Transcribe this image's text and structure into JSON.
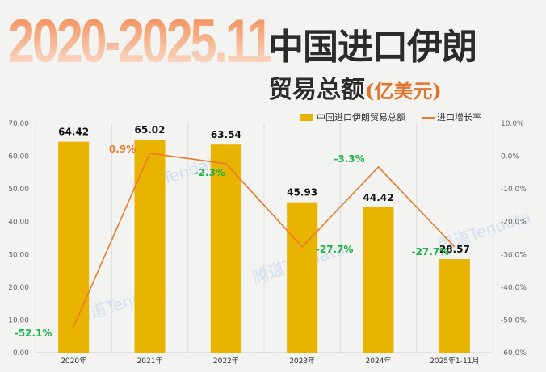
{
  "header": {
    "year_range": "2020-2025.11",
    "title_line1": "中国进口伊朗",
    "title_line2": "贸易总额",
    "unit": "(亿美元)"
  },
  "watermark": "腾道Tendata",
  "chart_data": {
    "type": "bar+line",
    "categories": [
      "2020年",
      "2021年",
      "2022年",
      "2023年",
      "2024年",
      "2025年1-11月"
    ],
    "series": [
      {
        "name": "中国进口伊朗贸易总额",
        "type": "bar",
        "axis": "left",
        "values": [
          64.42,
          65.02,
          63.54,
          45.93,
          44.42,
          28.57
        ],
        "labels": [
          "64.42",
          "65.02",
          "63.54",
          "45.93",
          "44.42",
          "28.57"
        ],
        "color": "#e8b400"
      },
      {
        "name": "进口增长率",
        "type": "line",
        "axis": "right",
        "values": [
          -52.1,
          0.9,
          -2.3,
          -27.7,
          -3.3,
          -27.7
        ],
        "labels": [
          "-52.1%",
          "0.9%",
          "-2.3%",
          "-27.7%",
          "-3.3%",
          "-27.7%"
        ],
        "color": "#e87b2e"
      }
    ],
    "left_axis": {
      "range": [
        0,
        70
      ],
      "ticks": [
        "0.00",
        "10.00",
        "20.00",
        "30.00",
        "40.00",
        "50.00",
        "60.00",
        "70.00"
      ]
    },
    "right_axis": {
      "range": [
        -60,
        10
      ],
      "ticks": [
        "-60.0%",
        "-50.0%",
        "-40.0%",
        "-30.0%",
        "-20.0%",
        "-10.0%",
        "0.0%",
        "10.0%"
      ]
    },
    "label_colors": {
      "positive": "#e87b2e",
      "negative": "#1fb34a"
    },
    "grid": "vertical",
    "legend": "top-right"
  }
}
